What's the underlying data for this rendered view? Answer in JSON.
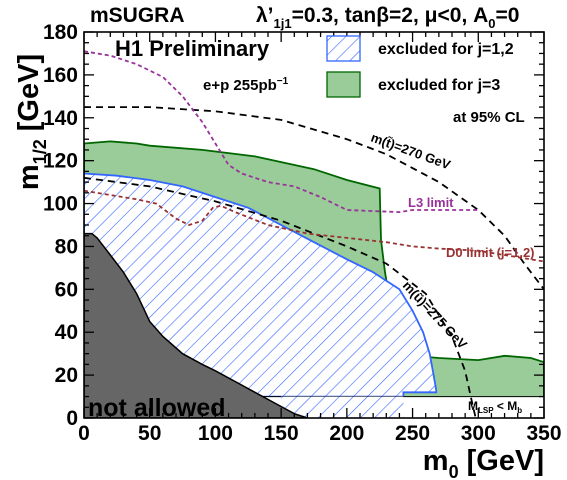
{
  "header": {
    "left": "mSUGRA",
    "params": [
      "λ’",
      "1j1",
      "=0.3, tanβ=2, μ<0, A",
      "0",
      "=0"
    ]
  },
  "labels": {
    "preliminary": "H1 Preliminary",
    "lumi": "e+p 255pb",
    "lumi_sup": "−1",
    "cl": "at 95% CL",
    "not_allowed": "not allowed",
    "stop_curve": "m(t̃)=270 GeV",
    "squark_curve": "m(ũ)=275 GeV",
    "l3": "L3 limit",
    "d0": "D0 limit (j=1,2)",
    "lsp_main": "M",
    "lsp_sub": "LSP",
    "lsp_rel": " < M",
    "lsp_sub2": "b"
  },
  "legend": [
    {
      "label": "excluded for j=1,2",
      "style": "hatch"
    },
    {
      "label": "excluded for j=3",
      "style": "fill"
    }
  ],
  "colors": {
    "green_fill": "#99cc99",
    "green_line": "#006600",
    "blue": "#3366ff",
    "gray": "#666666",
    "l3": "#993399",
    "d0": "#993333"
  },
  "chart_data": {
    "type": "area",
    "xlabel": "m₀ [GeV]",
    "ylabel": "m₁/₂ [GeV]",
    "xlim": [
      0,
      350
    ],
    "ylim": [
      0,
      180
    ],
    "xticks": [
      0,
      50,
      100,
      150,
      200,
      250,
      300,
      350
    ],
    "yticks": [
      0,
      20,
      40,
      60,
      80,
      100,
      120,
      140,
      160,
      180
    ],
    "regions": {
      "excluded_j3": [
        [
          0,
          128
        ],
        [
          20,
          129
        ],
        [
          40,
          128
        ],
        [
          50,
          127
        ],
        [
          90,
          125
        ],
        [
          130,
          122
        ],
        [
          175,
          116
        ],
        [
          200,
          111
        ],
        [
          225,
          107
        ],
        [
          226,
          83
        ],
        [
          229,
          68
        ],
        [
          232,
          57
        ],
        [
          236,
          44
        ],
        [
          240,
          36
        ],
        [
          245,
          32
        ],
        [
          250,
          29
        ],
        [
          270,
          28
        ],
        [
          300,
          27
        ],
        [
          320,
          29
        ],
        [
          340,
          28
        ],
        [
          350,
          26
        ],
        [
          350,
          0
        ],
        [
          0,
          0
        ]
      ],
      "excluded_j12": [
        [
          0,
          114
        ],
        [
          25,
          113
        ],
        [
          50,
          111
        ],
        [
          75,
          108
        ],
        [
          100,
          103
        ],
        [
          125,
          98
        ],
        [
          150,
          90
        ],
        [
          175,
          82
        ],
        [
          200,
          74
        ],
        [
          220,
          68
        ],
        [
          240,
          60
        ],
        [
          250,
          50
        ],
        [
          258,
          40
        ],
        [
          263,
          30
        ],
        [
          266,
          20
        ],
        [
          268,
          13
        ],
        [
          268,
          12
        ],
        [
          243,
          12
        ],
        [
          243,
          10
        ],
        [
          0,
          10
        ]
      ],
      "not_allowed": [
        [
          0,
          86
        ],
        [
          6,
          86
        ],
        [
          10,
          84
        ],
        [
          15,
          80
        ],
        [
          20,
          76
        ],
        [
          30,
          68
        ],
        [
          40,
          58
        ],
        [
          50,
          45
        ],
        [
          60,
          38
        ],
        [
          75,
          30
        ],
        [
          90,
          25
        ],
        [
          100,
          22
        ],
        [
          115,
          17
        ],
        [
          130,
          12
        ],
        [
          145,
          7
        ],
        [
          160,
          2
        ],
        [
          170,
          0
        ],
        [
          0,
          0
        ]
      ],
      "lsp_band": [
        [
          0,
          10
        ],
        [
          350,
          10
        ],
        [
          350,
          0
        ],
        [
          0,
          0
        ]
      ]
    },
    "series": [
      {
        "style": "dashed",
        "points": [
          [
            0,
            145
          ],
          [
            50,
            145
          ],
          [
            100,
            143
          ],
          [
            150,
            139
          ],
          [
            200,
            130
          ],
          [
            230,
            123
          ],
          [
            270,
            110
          ],
          [
            300,
            97
          ],
          [
            320,
            85
          ],
          [
            335,
            72
          ],
          [
            350,
            60
          ]
        ]
      },
      {
        "style": "dashed",
        "points": [
          [
            0,
            112
          ],
          [
            50,
            108
          ],
          [
            100,
            101
          ],
          [
            150,
            92
          ],
          [
            200,
            80
          ],
          [
            230,
            72
          ],
          [
            260,
            58
          ],
          [
            270,
            48
          ],
          [
            280,
            38
          ],
          [
            290,
            22
          ],
          [
            295,
            8
          ],
          [
            298,
            0
          ]
        ]
      },
      {
        "name": "L3 limit",
        "style": "dotted",
        "points": [
          [
            0,
            171
          ],
          [
            20,
            169
          ],
          [
            40,
            165
          ],
          [
            60,
            159
          ],
          [
            75,
            150
          ],
          [
            90,
            138
          ],
          [
            100,
            128
          ],
          [
            110,
            118
          ],
          [
            120,
            114
          ],
          [
            130,
            112
          ],
          [
            140,
            110
          ],
          [
            160,
            108
          ],
          [
            180,
            103
          ],
          [
            200,
            97
          ],
          [
            240,
            96
          ],
          [
            250,
            97
          ],
          [
            270,
            97
          ],
          [
            300,
            97
          ]
        ]
      },
      {
        "name": "D0 limit (j=1,2)",
        "style": "dotted",
        "points": [
          [
            0,
            106
          ],
          [
            20,
            104
          ],
          [
            40,
            102
          ],
          [
            55,
            100
          ],
          [
            70,
            93
          ],
          [
            80,
            90
          ],
          [
            90,
            92
          ],
          [
            98,
            98
          ],
          [
            104,
            99
          ],
          [
            115,
            96
          ],
          [
            140,
            90
          ],
          [
            170,
            86
          ],
          [
            200,
            84
          ],
          [
            230,
            82
          ],
          [
            250,
            80
          ],
          [
            270,
            79
          ],
          [
            300,
            78
          ],
          [
            330,
            75
          ],
          [
            350,
            73
          ]
        ]
      }
    ]
  }
}
